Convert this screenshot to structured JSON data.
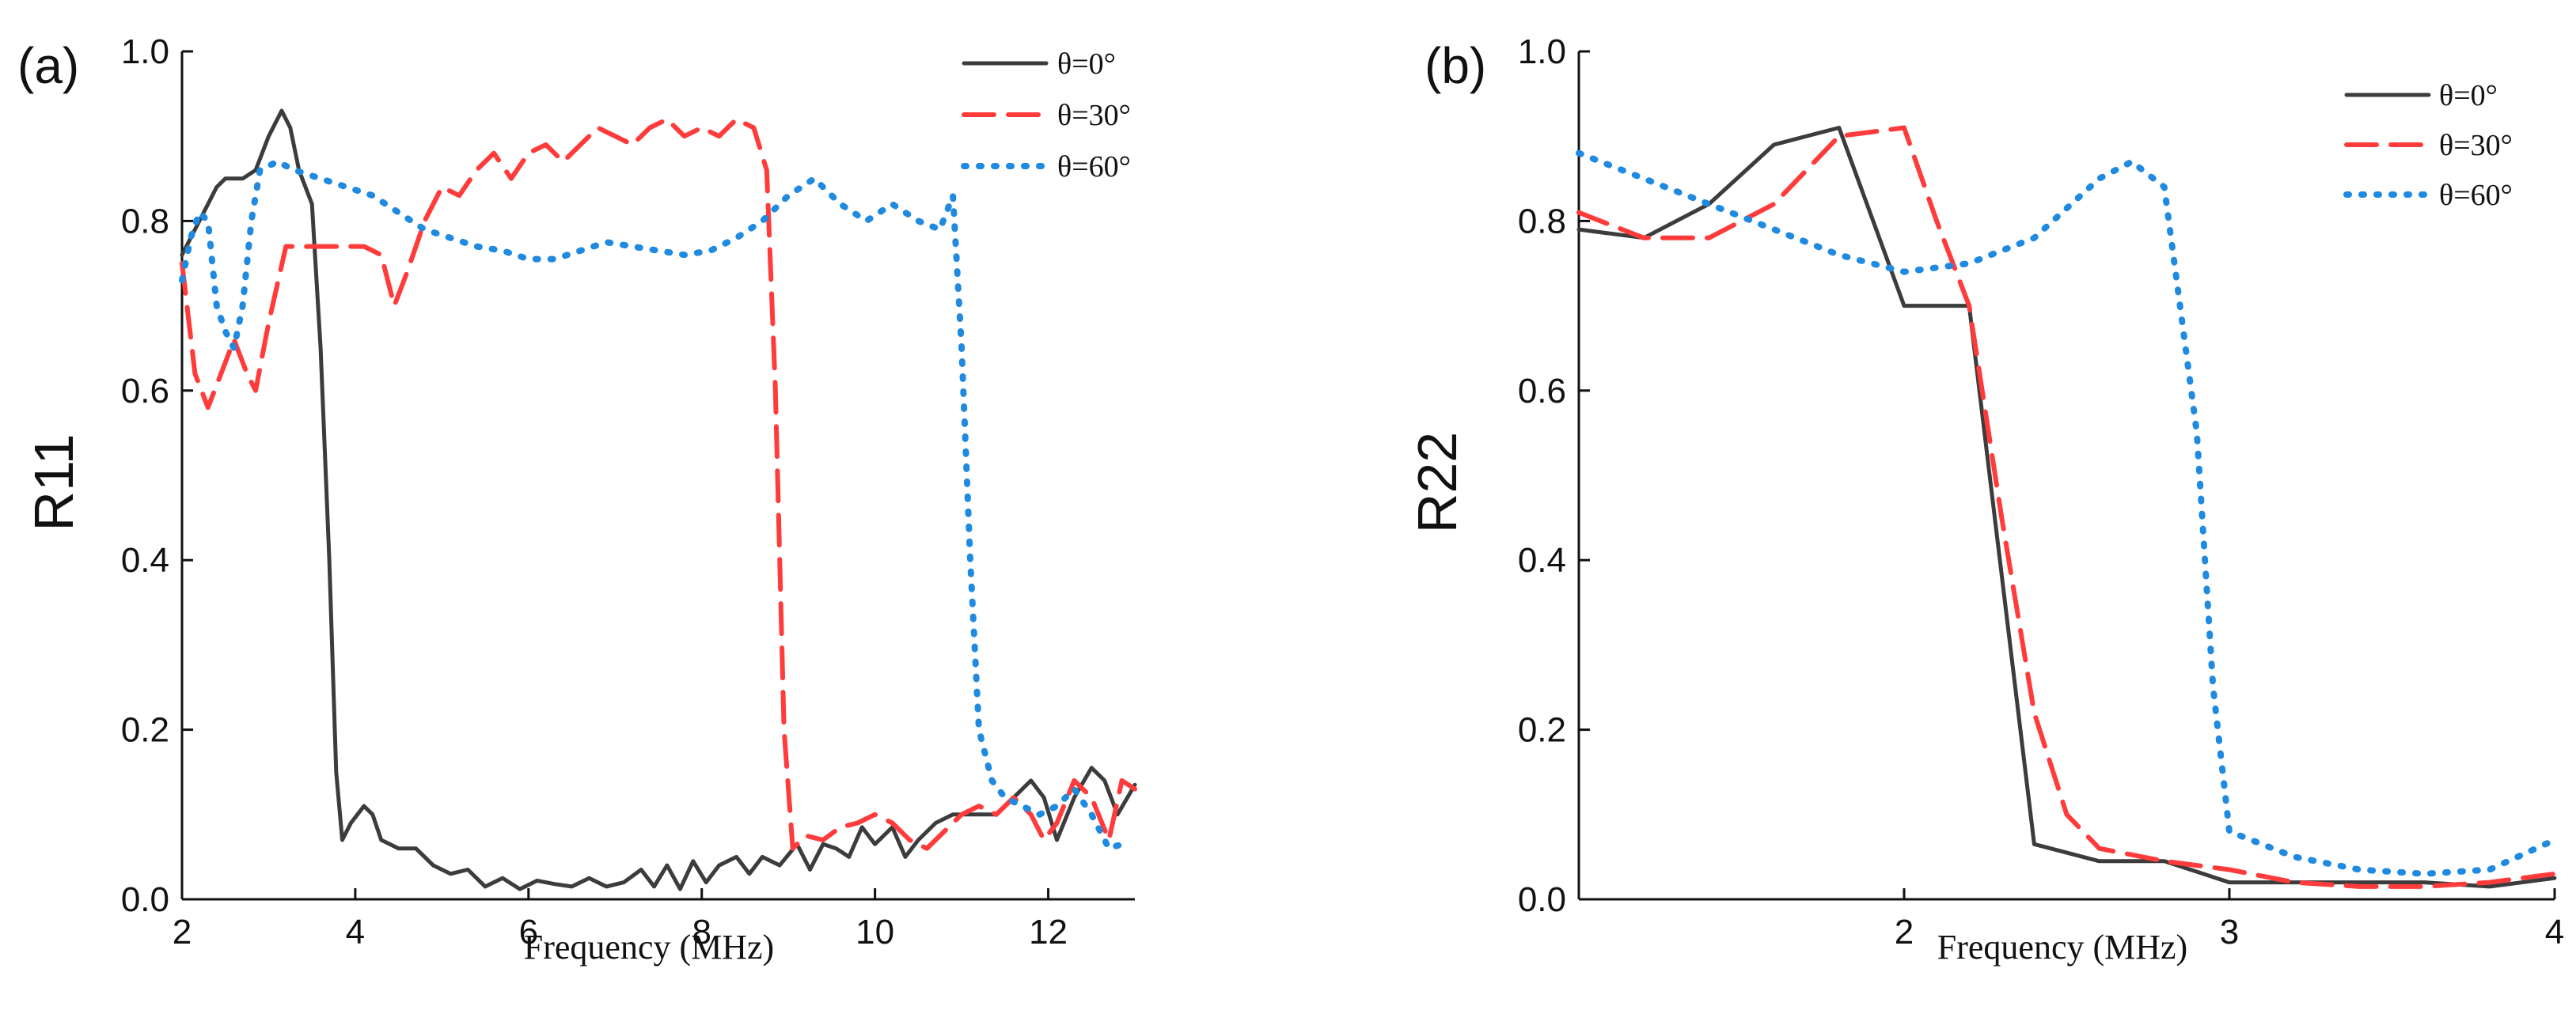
{
  "chart_data": [
    {
      "type": "line",
      "panel_label": "(a)",
      "title": "",
      "xlabel": "Frequency (MHz)",
      "ylabel": "R11",
      "xlim": [
        2,
        13
      ],
      "ylim": [
        0,
        1.0
      ],
      "xticks": [
        2,
        4,
        6,
        8,
        10,
        12
      ],
      "xtick_labels": [
        "2",
        "4",
        "6",
        "8",
        "10",
        "12"
      ],
      "yticks": [
        0,
        0.2,
        0.4,
        0.6,
        0.8,
        1.0
      ],
      "ytick_labels": [
        "0.0",
        "0.2",
        "0.4",
        "0.6",
        "0.8",
        "1.0"
      ],
      "grid": false,
      "legend_position": "top-right",
      "series": [
        {
          "name": "θ=0°",
          "color": "#3c3c3c",
          "style": "solid",
          "points": [
            [
              2.0,
              0.76
            ],
            [
              2.2,
              0.8
            ],
            [
              2.4,
              0.84
            ],
            [
              2.5,
              0.85
            ],
            [
              2.7,
              0.85
            ],
            [
              2.85,
              0.86
            ],
            [
              3.0,
              0.9
            ],
            [
              3.15,
              0.93
            ],
            [
              3.25,
              0.91
            ],
            [
              3.35,
              0.86
            ],
            [
              3.5,
              0.82
            ],
            [
              3.6,
              0.65
            ],
            [
              3.7,
              0.4
            ],
            [
              3.78,
              0.15
            ],
            [
              3.85,
              0.07
            ],
            [
              3.95,
              0.09
            ],
            [
              4.1,
              0.11
            ],
            [
              4.2,
              0.1
            ],
            [
              4.3,
              0.07
            ],
            [
              4.5,
              0.06
            ],
            [
              4.7,
              0.06
            ],
            [
              4.9,
              0.04
            ],
            [
              5.1,
              0.03
            ],
            [
              5.3,
              0.035
            ],
            [
              5.5,
              0.015
            ],
            [
              5.7,
              0.025
            ],
            [
              5.9,
              0.012
            ],
            [
              6.1,
              0.022
            ],
            [
              6.3,
              0.018
            ],
            [
              6.5,
              0.015
            ],
            [
              6.7,
              0.025
            ],
            [
              6.9,
              0.015
            ],
            [
              7.1,
              0.02
            ],
            [
              7.3,
              0.035
            ],
            [
              7.45,
              0.015
            ],
            [
              7.6,
              0.04
            ],
            [
              7.75,
              0.012
            ],
            [
              7.9,
              0.045
            ],
            [
              8.05,
              0.02
            ],
            [
              8.2,
              0.04
            ],
            [
              8.4,
              0.05
            ],
            [
              8.55,
              0.03
            ],
            [
              8.7,
              0.05
            ],
            [
              8.9,
              0.04
            ],
            [
              9.1,
              0.065
            ],
            [
              9.25,
              0.035
            ],
            [
              9.4,
              0.065
            ],
            [
              9.55,
              0.06
            ],
            [
              9.7,
              0.05
            ],
            [
              9.85,
              0.085
            ],
            [
              10.0,
              0.065
            ],
            [
              10.2,
              0.085
            ],
            [
              10.35,
              0.05
            ],
            [
              10.5,
              0.07
            ],
            [
              10.7,
              0.09
            ],
            [
              10.9,
              0.1
            ],
            [
              11.1,
              0.1
            ],
            [
              11.4,
              0.1
            ],
            [
              11.6,
              0.12
            ],
            [
              11.8,
              0.14
            ],
            [
              11.95,
              0.12
            ],
            [
              12.1,
              0.07
            ],
            [
              12.3,
              0.12
            ],
            [
              12.5,
              0.155
            ],
            [
              12.65,
              0.14
            ],
            [
              12.8,
              0.1
            ],
            [
              13.0,
              0.135
            ]
          ]
        },
        {
          "name": "θ=30°",
          "color": "#ff3b3b",
          "style": "dashed",
          "points": [
            [
              2.0,
              0.75
            ],
            [
              2.15,
              0.62
            ],
            [
              2.3,
              0.58
            ],
            [
              2.45,
              0.62
            ],
            [
              2.6,
              0.66
            ],
            [
              2.75,
              0.62
            ],
            [
              2.85,
              0.6
            ],
            [
              3.0,
              0.68
            ],
            [
              3.2,
              0.77
            ],
            [
              3.5,
              0.77
            ],
            [
              3.8,
              0.77
            ],
            [
              4.1,
              0.77
            ],
            [
              4.3,
              0.76
            ],
            [
              4.45,
              0.7
            ],
            [
              4.6,
              0.74
            ],
            [
              4.8,
              0.8
            ],
            [
              5.0,
              0.84
            ],
            [
              5.2,
              0.83
            ],
            [
              5.4,
              0.86
            ],
            [
              5.6,
              0.88
            ],
            [
              5.8,
              0.85
            ],
            [
              6.0,
              0.88
            ],
            [
              6.2,
              0.89
            ],
            [
              6.4,
              0.87
            ],
            [
              6.6,
              0.89
            ],
            [
              6.8,
              0.91
            ],
            [
              7.0,
              0.9
            ],
            [
              7.2,
              0.89
            ],
            [
              7.4,
              0.91
            ],
            [
              7.6,
              0.92
            ],
            [
              7.8,
              0.9
            ],
            [
              8.0,
              0.91
            ],
            [
              8.2,
              0.9
            ],
            [
              8.4,
              0.92
            ],
            [
              8.6,
              0.91
            ],
            [
              8.75,
              0.86
            ],
            [
              8.85,
              0.6
            ],
            [
              8.95,
              0.2
            ],
            [
              9.05,
              0.06
            ],
            [
              9.2,
              0.075
            ],
            [
              9.4,
              0.07
            ],
            [
              9.6,
              0.085
            ],
            [
              9.8,
              0.09
            ],
            [
              10.0,
              0.1
            ],
            [
              10.2,
              0.09
            ],
            [
              10.4,
              0.07
            ],
            [
              10.6,
              0.06
            ],
            [
              10.8,
              0.08
            ],
            [
              11.0,
              0.1
            ],
            [
              11.2,
              0.11
            ],
            [
              11.4,
              0.1
            ],
            [
              11.6,
              0.12
            ],
            [
              11.8,
              0.1
            ],
            [
              11.95,
              0.07
            ],
            [
              12.1,
              0.09
            ],
            [
              12.3,
              0.14
            ],
            [
              12.5,
              0.12
            ],
            [
              12.7,
              0.07
            ],
            [
              12.85,
              0.14
            ],
            [
              13.0,
              0.13
            ]
          ]
        },
        {
          "name": "θ=60°",
          "color": "#1f8ae0",
          "style": "dotted",
          "points": [
            [
              2.0,
              0.73
            ],
            [
              2.1,
              0.78
            ],
            [
              2.2,
              0.81
            ],
            [
              2.3,
              0.8
            ],
            [
              2.4,
              0.7
            ],
            [
              2.5,
              0.67
            ],
            [
              2.6,
              0.65
            ],
            [
              2.7,
              0.7
            ],
            [
              2.8,
              0.8
            ],
            [
              2.9,
              0.86
            ],
            [
              3.1,
              0.87
            ],
            [
              3.3,
              0.86
            ],
            [
              3.6,
              0.85
            ],
            [
              3.9,
              0.84
            ],
            [
              4.2,
              0.83
            ],
            [
              4.5,
              0.81
            ],
            [
              4.8,
              0.79
            ],
            [
              5.1,
              0.78
            ],
            [
              5.4,
              0.77
            ],
            [
              5.7,
              0.765
            ],
            [
              6.0,
              0.755
            ],
            [
              6.3,
              0.755
            ],
            [
              6.6,
              0.765
            ],
            [
              6.9,
              0.775
            ],
            [
              7.2,
              0.77
            ],
            [
              7.5,
              0.765
            ],
            [
              7.8,
              0.76
            ],
            [
              8.1,
              0.765
            ],
            [
              8.4,
              0.78
            ],
            [
              8.7,
              0.8
            ],
            [
              9.0,
              0.83
            ],
            [
              9.3,
              0.85
            ],
            [
              9.6,
              0.82
            ],
            [
              9.9,
              0.8
            ],
            [
              10.2,
              0.82
            ],
            [
              10.5,
              0.8
            ],
            [
              10.75,
              0.79
            ],
            [
              10.9,
              0.83
            ],
            [
              11.0,
              0.65
            ],
            [
              11.1,
              0.4
            ],
            [
              11.2,
              0.2
            ],
            [
              11.35,
              0.14
            ],
            [
              11.5,
              0.12
            ],
            [
              11.7,
              0.11
            ],
            [
              11.9,
              0.1
            ],
            [
              12.1,
              0.11
            ],
            [
              12.3,
              0.13
            ],
            [
              12.5,
              0.1
            ],
            [
              12.7,
              0.06
            ],
            [
              12.85,
              0.065
            ]
          ]
        }
      ]
    },
    {
      "type": "line",
      "panel_label": "(b)",
      "title": "",
      "xlabel": "Frequency (MHz)",
      "ylabel": "R22",
      "xlim": [
        1,
        4
      ],
      "ylim": [
        0,
        1.0
      ],
      "xticks": [
        2,
        3,
        4
      ],
      "xtick_labels": [
        "2",
        "3",
        "4"
      ],
      "yticks": [
        0,
        0.2,
        0.4,
        0.6,
        0.8,
        1.0
      ],
      "ytick_labels": [
        "0.0",
        "0.2",
        "0.4",
        "0.6",
        "0.8",
        "1.0"
      ],
      "grid": false,
      "legend_position": "top-right",
      "series": [
        {
          "name": "θ=0°",
          "color": "#3c3c3c",
          "style": "solid",
          "points": [
            [
              1.0,
              0.79
            ],
            [
              1.2,
              0.78
            ],
            [
              1.4,
              0.82
            ],
            [
              1.6,
              0.89
            ],
            [
              1.8,
              0.91
            ],
            [
              2.0,
              0.7
            ],
            [
              2.2,
              0.7
            ],
            [
              2.4,
              0.065
            ],
            [
              2.6,
              0.045
            ],
            [
              2.8,
              0.045
            ],
            [
              3.0,
              0.02
            ],
            [
              3.4,
              0.02
            ],
            [
              3.6,
              0.02
            ],
            [
              3.8,
              0.015
            ],
            [
              4.0,
              0.025
            ]
          ]
        },
        {
          "name": "θ=30°",
          "color": "#ff3b3b",
          "style": "dashed",
          "points": [
            [
              1.0,
              0.81
            ],
            [
              1.2,
              0.78
            ],
            [
              1.4,
              0.78
            ],
            [
              1.6,
              0.82
            ],
            [
              1.8,
              0.9
            ],
            [
              2.0,
              0.91
            ],
            [
              2.1,
              0.8
            ],
            [
              2.2,
              0.7
            ],
            [
              2.3,
              0.45
            ],
            [
              2.4,
              0.22
            ],
            [
              2.5,
              0.1
            ],
            [
              2.6,
              0.06
            ],
            [
              2.8,
              0.045
            ],
            [
              3.0,
              0.035
            ],
            [
              3.2,
              0.02
            ],
            [
              3.4,
              0.015
            ],
            [
              3.6,
              0.015
            ],
            [
              3.8,
              0.02
            ],
            [
              4.0,
              0.03
            ]
          ]
        },
        {
          "name": "θ=60°",
          "color": "#1f8ae0",
          "style": "dotted",
          "points": [
            [
              1.0,
              0.88
            ],
            [
              1.2,
              0.85
            ],
            [
              1.4,
              0.82
            ],
            [
              1.6,
              0.79
            ],
            [
              1.8,
              0.76
            ],
            [
              2.0,
              0.74
            ],
            [
              2.2,
              0.75
            ],
            [
              2.4,
              0.78
            ],
            [
              2.6,
              0.85
            ],
            [
              2.7,
              0.87
            ],
            [
              2.8,
              0.84
            ],
            [
              2.9,
              0.55
            ],
            [
              2.95,
              0.25
            ],
            [
              3.0,
              0.08
            ],
            [
              3.2,
              0.05
            ],
            [
              3.4,
              0.035
            ],
            [
              3.6,
              0.03
            ],
            [
              3.8,
              0.035
            ],
            [
              4.0,
              0.07
            ]
          ]
        }
      ]
    }
  ]
}
